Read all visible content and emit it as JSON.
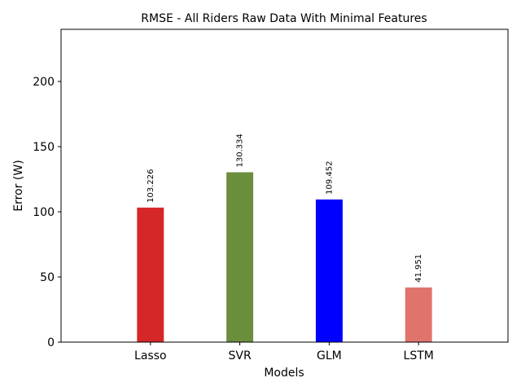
{
  "chart_data": {
    "type": "bar",
    "title": "RMSE - All Riders Raw Data With Minimal Features",
    "xlabel": "Models",
    "ylabel": "Error (W)",
    "categories": [
      "Lasso",
      "SVR",
      "GLM",
      "LSTM"
    ],
    "values": [
      103.226,
      130.334,
      109.452,
      41.951
    ],
    "value_labels": [
      "103.226",
      "130.334",
      "109.452",
      "41.951"
    ],
    "colors": [
      "#d62728",
      "#6b8e3c",
      "#0000ff",
      "#e0746c"
    ],
    "ylim": [
      0,
      240
    ],
    "xlim": [
      -1,
      4
    ],
    "yticks": [
      0,
      50,
      100,
      150,
      200
    ],
    "grid": false
  }
}
